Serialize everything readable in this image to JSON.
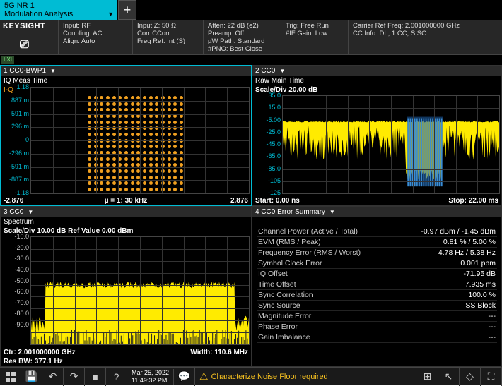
{
  "tab": {
    "line1": "5G NR 1",
    "line2": "Modulation Analysis"
  },
  "brand": "KEYSIGHT",
  "header": {
    "c1": {
      "l1": "Input: RF",
      "l2": "Coupling: AC",
      "l3": "Align: Auto"
    },
    "c2": {
      "l1": "Input Z: 50 Ω",
      "l2": "Corr CCorr",
      "l3": "Freq Ref: Int (S)"
    },
    "c3": {
      "l1": "Atten: 22 dB (e2)",
      "l2": "Preamp: Off",
      "l3": "µW Path: Standard",
      "l4": "#PNO: Best Close"
    },
    "c4": {
      "l1": "Trig: Free Run",
      "l2": "#IF Gain: Low"
    },
    "c5": {
      "l1": "Carrier Ref Freq: 2.001000000 GHz",
      "l2": "CC Info: DL, 1 CC, SISO"
    }
  },
  "lxi": "LXI",
  "p1": {
    "title": "1 CC0-BWP1",
    "sub": "IQ Meas Time",
    "sub2": "I-Q",
    "ylabels": [
      "1.18",
      "887 m",
      "591 m",
      "296 m",
      "0",
      "-296 m",
      "-591 m",
      "-887 m",
      "-1.18"
    ],
    "fl": "-2.876",
    "fc": "µ = 1: 30 kHz",
    "fr": "2.876",
    "const_color": "#f0a020",
    "grid_n": 16
  },
  "p2": {
    "title": "2 CC0",
    "sub": "Raw Main Time",
    "scale": "Scale/Div 20.00 dB",
    "ylabels": [
      "35.0",
      "15.0",
      "-5.00",
      "-25.0",
      "-45.0",
      "-65.0",
      "-85.0",
      "-105",
      "-125"
    ],
    "fl": "Start: 0.00 ns",
    "fr": "Stop: 22.00 ms",
    "color": "#ffeb00",
    "blue": "#1e5fa8"
  },
  "p3": {
    "title": "3 CC0",
    "sub": "Spectrum",
    "scale": "Scale/Div 10.00 dB Ref Value 0.00 dBm",
    "ylabels": [
      "-10.0",
      "-20.0",
      "-30.0",
      "-40.0",
      "-50.0",
      "-60.0",
      "-70.0",
      "-80.0",
      "-90.0"
    ],
    "fl": "Ctr: 2.001000000 GHz",
    "fr": "Width: 110.6 MHz",
    "fl2": "Res BW: 377.1 Hz",
    "color": "#ffeb00"
  },
  "p4": {
    "title": "4 CC0 Error Summary",
    "rows": [
      [
        "Channel Power (Active / Total)",
        "-0.97 dBm / -1.45 dBm"
      ],
      [
        "EVM (RMS / Peak)",
        "0.81 % / 5.00 %"
      ],
      [
        "Frequency Error (RMS / Worst)",
        "4.78 Hz / 5.38 Hz"
      ],
      [
        "Symbol Clock Error",
        "0.001 ppm"
      ],
      [
        "IQ Offset",
        "-71.95 dB"
      ],
      [
        "Time Offset",
        "7.935 ms"
      ],
      [
        "Sync Correlation",
        "100.0 %"
      ],
      [
        "Sync Source",
        "SS Block"
      ],
      [
        "Magnitude Error",
        "---"
      ],
      [
        "Phase Error",
        "---"
      ],
      [
        "Gain Imbalance",
        "---"
      ]
    ]
  },
  "bottom": {
    "date": "Mar 25, 2022",
    "time": "11:49:32 PM",
    "warn": "Characterize Noise Floor required"
  }
}
